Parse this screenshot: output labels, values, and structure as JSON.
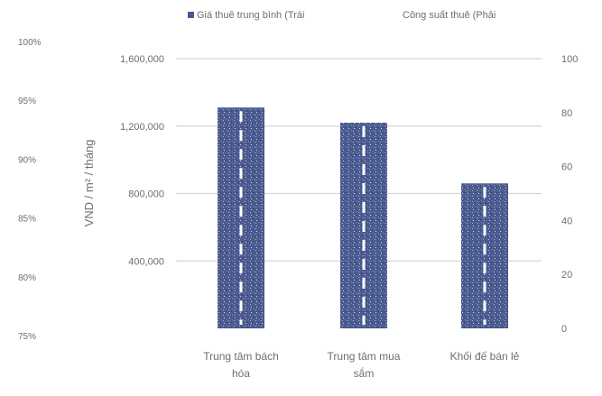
{
  "chart_data": {
    "type": "bar",
    "title": "",
    "legend": {
      "placement": "top",
      "entries": [
        "Giá thuê trung bình (Trái",
        "Công suất thuê (Phải"
      ]
    },
    "ylabel": "VND / m² / tháng",
    "y_left": {
      "range": [
        0,
        1600000
      ],
      "ticks": [
        "400,000",
        "800,000",
        "1,200,000",
        "1,600,000"
      ],
      "tick_values": [
        400000,
        800000,
        1200000,
        1600000
      ]
    },
    "y_right": {
      "range": [
        0,
        100
      ],
      "ticks": [
        "0",
        "20",
        "40",
        "60",
        "80",
        "100"
      ],
      "tick_values": [
        0,
        20,
        40,
        60,
        80,
        100
      ]
    },
    "y_far_left": {
      "range": [
        75,
        100
      ],
      "ticks": [
        "75%",
        "80%",
        "85%",
        "90%",
        "95%",
        "100%"
      ],
      "tick_values": [
        75,
        80,
        85,
        90,
        95,
        100
      ]
    },
    "categories": [
      "Trung tâm bách hóa",
      "Trung tâm mua sắm",
      "Khối đế bán lẻ"
    ],
    "series": [
      {
        "name": "Giá thuê trung bình (Trái",
        "axis": "left",
        "values": [
          1310000,
          1220000,
          860000
        ]
      }
    ],
    "grid": true,
    "colors": {
      "bar": "#4a5a8c",
      "bar_speckle": "#8a9ad0",
      "dash": "#ffffff",
      "grid": "#d6d6d6",
      "text": "#6e6e6e"
    }
  }
}
